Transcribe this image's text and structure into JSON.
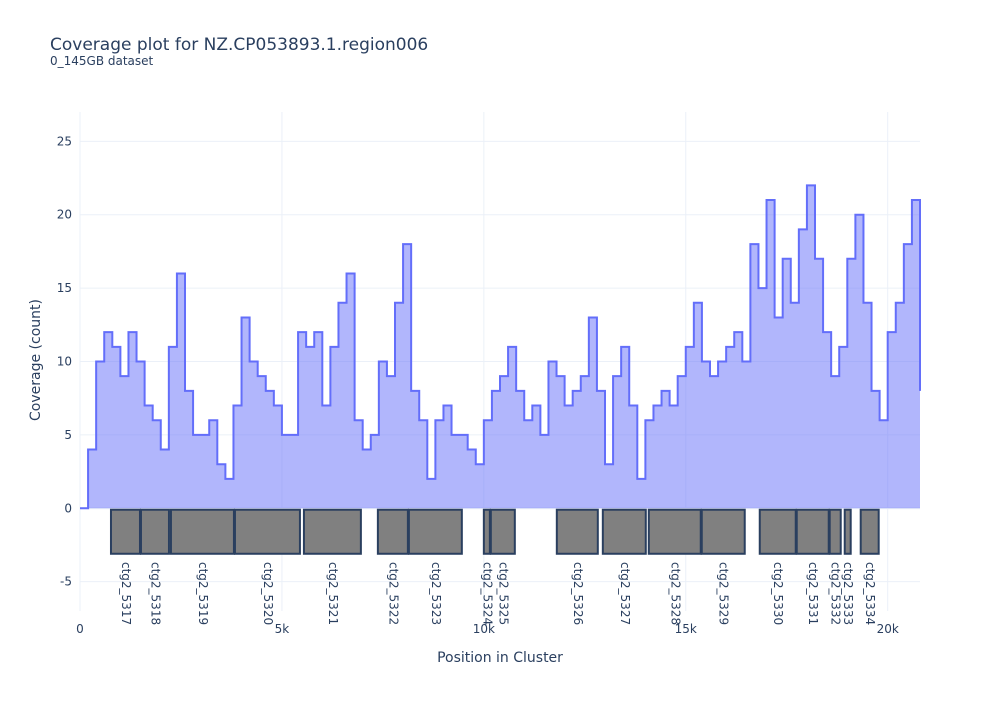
{
  "chart_data": {
    "type": "area",
    "title": "Coverage plot for NZ.CP053893.1.region006",
    "subtitle": "0_145GB dataset",
    "x_label": "Position in Cluster",
    "y_label": "Coverage (count)",
    "xlim": [
      0,
      20800
    ],
    "ylim": [
      -7,
      27
    ],
    "xticks": [
      0,
      {
        "value": 5000,
        "label": "5k"
      },
      {
        "value": 10000,
        "label": "10k"
      },
      {
        "value": 15000,
        "label": "15k"
      },
      {
        "value": 20000,
        "label": "20k"
      }
    ],
    "yticks": [
      -5,
      0,
      5,
      10,
      15,
      20,
      25
    ],
    "grid": true,
    "x": [
      0,
      200,
      400,
      600,
      800,
      1000,
      1200,
      1400,
      1600,
      1800,
      2000,
      2200,
      2400,
      2600,
      2800,
      3000,
      3200,
      3400,
      3600,
      3800,
      4000,
      4200,
      4400,
      4600,
      4800,
      5000,
      5200,
      5400,
      5600,
      5800,
      6000,
      6200,
      6400,
      6600,
      6800,
      7000,
      7200,
      7400,
      7600,
      7800,
      8000,
      8200,
      8400,
      8600,
      8800,
      9000,
      9200,
      9400,
      9600,
      9800,
      10000,
      10200,
      10400,
      10600,
      10800,
      11000,
      11200,
      11400,
      11600,
      11800,
      12000,
      12200,
      12400,
      12600,
      12800,
      13000,
      13200,
      13400,
      13600,
      13800,
      14000,
      14200,
      14400,
      14600,
      14800,
      15000,
      15200,
      15400,
      15600,
      15800,
      16000,
      16200,
      16400,
      16600,
      16800,
      17000,
      17200,
      17400,
      17600,
      17800,
      18000,
      18200,
      18400,
      18600,
      18800,
      19000,
      19200,
      19400,
      19600,
      19800,
      20000,
      20200,
      20400,
      20600,
      20800
    ],
    "series": [
      {
        "color": "#636efa",
        "values": [
          0,
          4,
          10,
          12,
          11,
          9,
          12,
          10,
          7,
          6,
          4,
          11,
          16,
          8,
          5,
          5,
          6,
          3,
          2,
          7,
          13,
          10,
          9,
          8,
          7,
          5,
          5,
          12,
          11,
          12,
          7,
          11,
          14,
          16,
          6,
          4,
          5,
          10,
          9,
          14,
          18,
          8,
          6,
          2,
          6,
          7,
          5,
          5,
          4,
          3,
          6,
          8,
          9,
          11,
          8,
          6,
          7,
          5,
          10,
          9,
          7,
          8,
          9,
          13,
          8,
          3,
          9,
          11,
          7,
          2,
          6,
          7,
          8,
          7,
          9,
          11,
          14,
          10,
          9,
          10,
          11,
          12,
          10,
          18,
          15,
          21,
          13,
          17,
          14,
          19,
          22,
          17,
          12,
          9,
          11,
          17,
          20,
          14,
          8,
          6,
          12,
          14,
          18,
          21,
          8
        ]
      }
    ],
    "genes": {
      "names": [
        "ctg2_5317",
        "ctg2_5318",
        "ctg2_5319",
        "ctg2_5320",
        "ctg2_5321",
        "ctg2_5322",
        "ctg2_5323",
        "ctg2_5324",
        "ctg2_5325",
        "ctg2_5326",
        "ctg2_5327",
        "ctg2_5328",
        "ctg2_5329",
        "ctg2_5330",
        "ctg2_5331",
        "ctg2_5332",
        "ctg2_5333",
        "ctg2_5334"
      ],
      "starts": [
        767,
        1510,
        2252,
        3837,
        5545,
        7376,
        8144,
        10000,
        10173,
        11807,
        12946,
        14084,
        15396,
        16832,
        17748,
        18564,
        18936,
        19332
      ],
      "ends": [
        1485,
        2203,
        3812,
        5446,
        6955,
        8119,
        9455,
        10149,
        10767,
        12822,
        14010,
        15371,
        16460,
        17723,
        18540,
        18837,
        19084,
        19777
      ],
      "y0": -3.1,
      "y1": -0.1,
      "color": "#808080"
    }
  }
}
